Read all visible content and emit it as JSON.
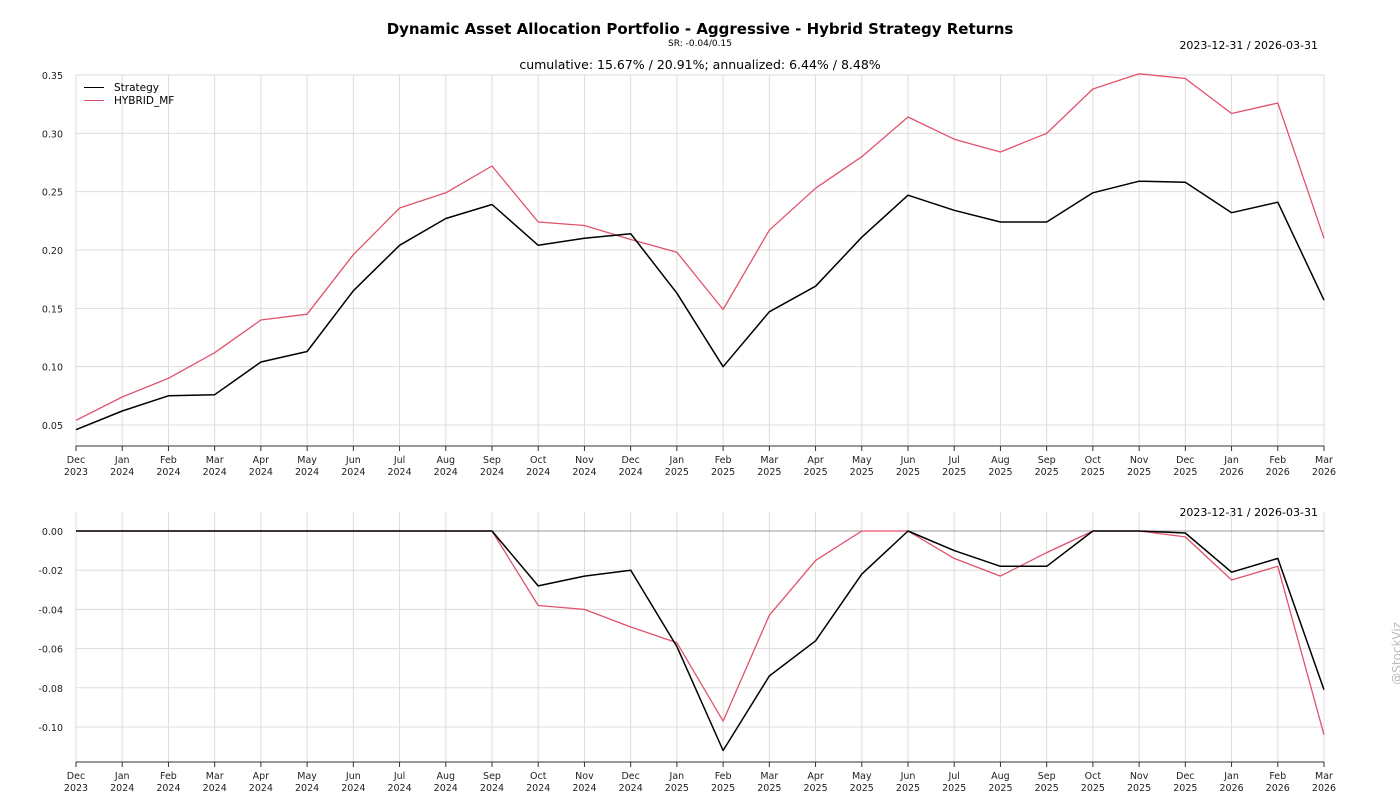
{
  "header": {
    "title": "Dynamic Asset Allocation Portfolio - Aggressive - Hybrid Strategy Returns",
    "subtitle": "SR: -0.04/0.15",
    "stats": "cumulative: 15.67% / 20.91%; annualized: 6.44% / 8.48%"
  },
  "range_top": "2023-12-31 / 2026-03-31",
  "range_bottom": "2023-12-31 / 2026-03-31",
  "watermark": "@StockViz",
  "colors": {
    "strategy": "#000000",
    "benchmark": "#e0526b",
    "grid": "#dddddd"
  },
  "chart_data": [
    {
      "type": "line",
      "x": [
        "Dec\n2023",
        "Jan\n2024",
        "Feb\n2024",
        "Mar\n2024",
        "Apr\n2024",
        "May\n2024",
        "Jun\n2024",
        "Jul\n2024",
        "Aug\n2024",
        "Sep\n2024",
        "Oct\n2024",
        "Nov\n2024",
        "Dec\n2024",
        "Jan\n2025",
        "Feb\n2025",
        "Mar\n2025",
        "Apr\n2025",
        "May\n2025",
        "Jun\n2025",
        "Jul\n2025",
        "Aug\n2025",
        "Sep\n2025",
        "Oct\n2025",
        "Nov\n2025",
        "Dec\n2025",
        "Jan\n2026",
        "Feb\n2026",
        "Mar\n2026"
      ],
      "ylim": [
        0.05,
        0.35
      ],
      "yticks": [
        "0.35",
        "0.30",
        "0.25",
        "0.20",
        "0.15",
        "0.10",
        "0.05"
      ],
      "grid": true,
      "legend": "top-left",
      "series": [
        {
          "name": "Strategy",
          "values": [
            0.046,
            0.062,
            0.075,
            0.076,
            0.104,
            0.113,
            0.165,
            0.204,
            0.227,
            0.239,
            0.204,
            0.21,
            0.214,
            0.163,
            0.1,
            0.147,
            0.169,
            0.211,
            0.247,
            0.234,
            0.224,
            0.224,
            0.249,
            0.259,
            0.258,
            0.232,
            0.241,
            0.157
          ]
        },
        {
          "name": "HYBRID_MF",
          "values": [
            0.054,
            0.074,
            0.09,
            0.112,
            0.14,
            0.145,
            0.196,
            0.236,
            0.249,
            0.272,
            0.224,
            0.221,
            0.209,
            0.198,
            0.149,
            0.217,
            0.253,
            0.28,
            0.314,
            0.295,
            0.284,
            0.3,
            0.338,
            0.351,
            0.347,
            0.317,
            0.326,
            0.21
          ]
        }
      ]
    },
    {
      "type": "line",
      "x": [
        "Dec\n2023",
        "Jan\n2024",
        "Feb\n2024",
        "Mar\n2024",
        "Apr\n2024",
        "May\n2024",
        "Jun\n2024",
        "Jul\n2024",
        "Aug\n2024",
        "Sep\n2024",
        "Oct\n2024",
        "Nov\n2024",
        "Dec\n2024",
        "Jan\n2025",
        "Feb\n2025",
        "Mar\n2025",
        "Apr\n2025",
        "May\n2025",
        "Jun\n2025",
        "Jul\n2025",
        "Aug\n2025",
        "Sep\n2025",
        "Oct\n2025",
        "Nov\n2025",
        "Dec\n2025",
        "Jan\n2026",
        "Feb\n2026",
        "Mar\n2026"
      ],
      "ylim": [
        -0.11,
        0.0
      ],
      "yticks": [
        "0.00",
        "-0.02",
        "-0.04",
        "-0.06",
        "-0.08",
        "-0.10"
      ],
      "grid": true,
      "series": [
        {
          "values": [
            0,
            0,
            0,
            0,
            0,
            0,
            0,
            0,
            0,
            0,
            -0.028,
            -0.023,
            -0.02,
            -0.059,
            -0.112,
            -0.074,
            -0.056,
            -0.022,
            0,
            -0.01,
            -0.018,
            -0.018,
            0,
            0,
            -0.001,
            -0.021,
            -0.014,
            -0.081
          ]
        },
        {
          "values": [
            0,
            0,
            0,
            0,
            0,
            0,
            0,
            0,
            0,
            0,
            -0.038,
            -0.04,
            -0.049,
            -0.057,
            -0.097,
            -0.043,
            -0.015,
            0,
            0,
            -0.014,
            -0.023,
            -0.011,
            0,
            0,
            -0.003,
            -0.025,
            -0.018,
            -0.104
          ]
        }
      ]
    }
  ]
}
